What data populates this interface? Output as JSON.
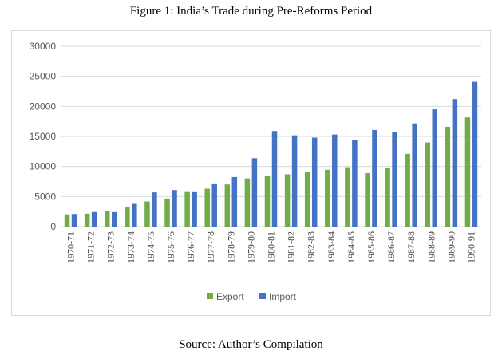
{
  "figure_title": "Figure 1: India’s Trade during Pre-Reforms Period",
  "source": "Source: Author’s Compilation",
  "chart_data": {
    "type": "bar",
    "categories": [
      "1970-71",
      "1971-72",
      "1972-73",
      "1973-74",
      "1974-75",
      "1975-76",
      "1976-77",
      "1977-78",
      "1978-79",
      "1979-80",
      "1980-81",
      "1981-82",
      "1982-83",
      "1983-84",
      "1984-85",
      "1985-86",
      "1986-87",
      "1987-88",
      "1988-89",
      "1989-90",
      "1990-91"
    ],
    "series": [
      {
        "name": "Export",
        "color": "#70ad47",
        "values": [
          2030,
          2150,
          2560,
          3210,
          4180,
          4670,
          5750,
          6300,
          7010,
          8000,
          8490,
          8700,
          9110,
          9450,
          9880,
          8900,
          9750,
          12100,
          14000,
          16600,
          18150
        ]
      },
      {
        "name": "Import",
        "color": "#4472c4",
        "values": [
          2090,
          2420,
          2410,
          3780,
          5690,
          6080,
          5730,
          7050,
          8240,
          11370,
          15900,
          15180,
          14800,
          15320,
          14430,
          16070,
          15730,
          17160,
          19500,
          21210,
          24080
        ]
      }
    ],
    "yticks": [
      "0",
      "5000",
      "10000",
      "15000",
      "20000",
      "25000",
      "30000"
    ],
    "ylim": [
      0,
      30000
    ],
    "grid": true,
    "legend_position": "bottom"
  }
}
